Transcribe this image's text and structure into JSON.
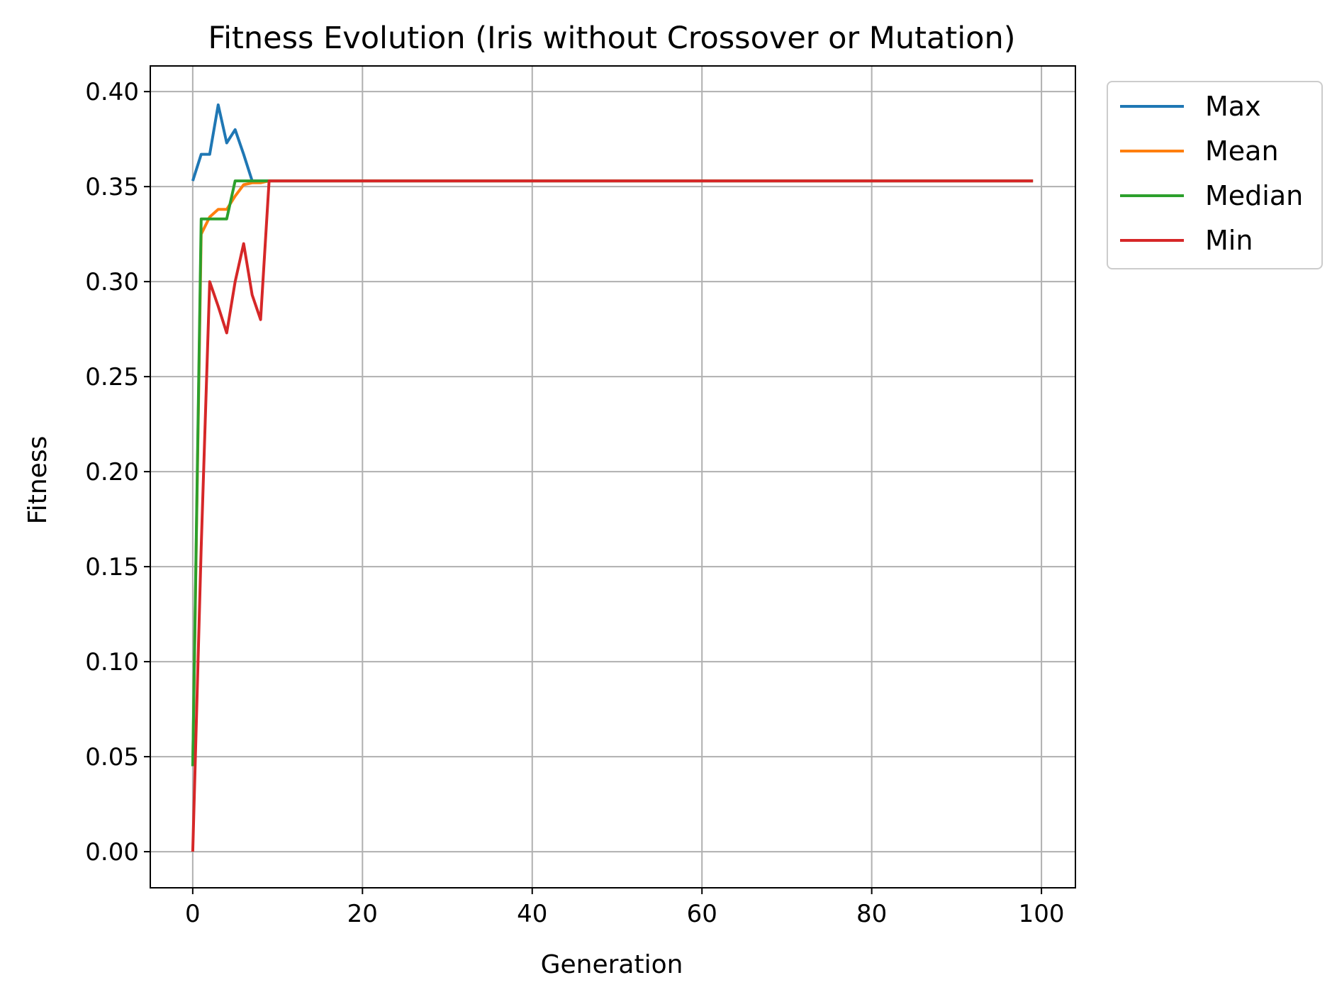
{
  "chart_data": {
    "type": "line",
    "title": "Fitness Evolution (Iris without Crossover or Mutation)",
    "xlabel": "Generation",
    "ylabel": "Fitness",
    "xlim": [
      -5,
      104
    ],
    "ylim": [
      -0.019,
      0.4135
    ],
    "xticks": [
      0,
      20,
      40,
      60,
      80,
      100
    ],
    "xtick_labels": [
      "0",
      "20",
      "40",
      "60",
      "80",
      "100"
    ],
    "yticks": [
      0.0,
      0.05,
      0.1,
      0.15,
      0.2,
      0.25,
      0.3,
      0.35,
      0.4
    ],
    "ytick_labels": [
      "0.00",
      "0.05",
      "0.10",
      "0.15",
      "0.20",
      "0.25",
      "0.30",
      "0.35",
      "0.40"
    ],
    "grid": true,
    "legend_position": "outside-right-top",
    "series": [
      {
        "name": "Max",
        "color": "#1f77b4",
        "points": [
          [
            0,
            0.353
          ],
          [
            1,
            0.367
          ],
          [
            2,
            0.367
          ],
          [
            3,
            0.393
          ],
          [
            4,
            0.373
          ],
          [
            5,
            0.38
          ],
          [
            6,
            0.367
          ],
          [
            7,
            0.353
          ],
          [
            99,
            0.353
          ]
        ]
      },
      {
        "name": "Mean",
        "color": "#ff7f0e",
        "points": [
          [
            0,
            0.045
          ],
          [
            1,
            0.325
          ],
          [
            2,
            0.334
          ],
          [
            3,
            0.338
          ],
          [
            4,
            0.338
          ],
          [
            5,
            0.345
          ],
          [
            6,
            0.351
          ],
          [
            7,
            0.352
          ],
          [
            8,
            0.352
          ],
          [
            9,
            0.353
          ],
          [
            99,
            0.353
          ]
        ]
      },
      {
        "name": "Median",
        "color": "#2ca02c",
        "points": [
          [
            0,
            0.045
          ],
          [
            1,
            0.333
          ],
          [
            2,
            0.333
          ],
          [
            3,
            0.333
          ],
          [
            4,
            0.333
          ],
          [
            5,
            0.353
          ],
          [
            99,
            0.353
          ]
        ]
      },
      {
        "name": "Min",
        "color": "#d62728",
        "points": [
          [
            0,
            0.0
          ],
          [
            1,
            0.16
          ],
          [
            2,
            0.3
          ],
          [
            3,
            0.287
          ],
          [
            4,
            0.273
          ],
          [
            5,
            0.3
          ],
          [
            6,
            0.32
          ],
          [
            7,
            0.293
          ],
          [
            8,
            0.28
          ],
          [
            9,
            0.353
          ],
          [
            99,
            0.353
          ]
        ]
      }
    ]
  }
}
